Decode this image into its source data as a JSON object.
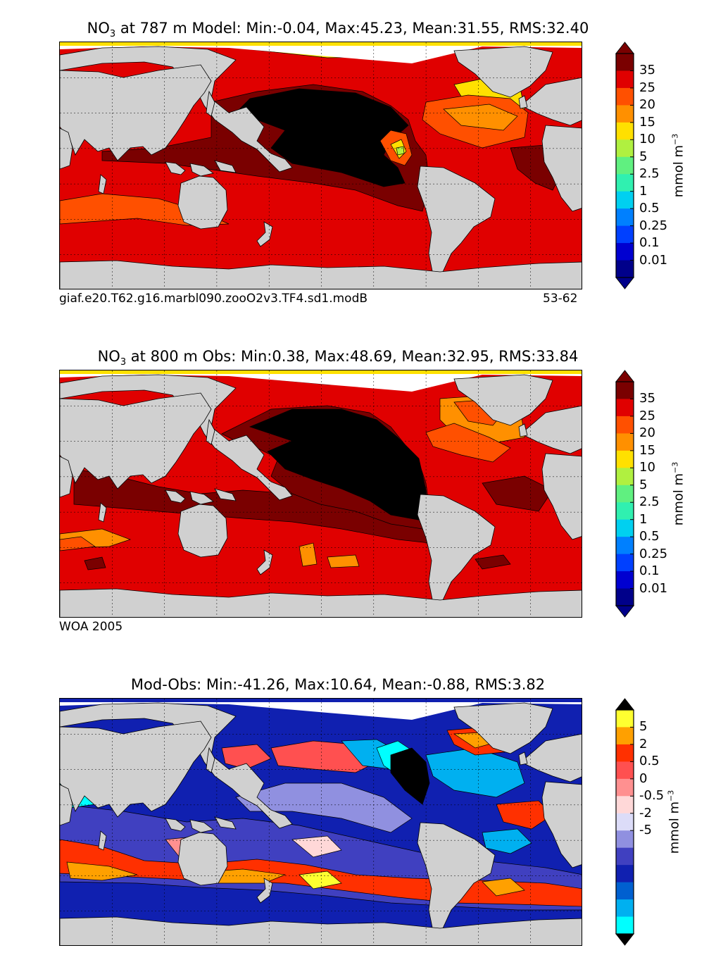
{
  "panels": [
    {
      "title_sym": "NO",
      "title_sub": "3",
      "title_rest": " at 787 m Model: Min:-0.04, Max:45.23, Mean:31.55, RMS:32.40",
      "caption_left": "giaf.e20.T62.g16.marbl090.zooO2v3.TF4.sd1.modB",
      "caption_right": "53-62",
      "colorbar": {
        "labels": [
          "35",
          "25",
          "20",
          "15",
          "10",
          "5",
          "2.5",
          "1",
          "0.5",
          "0.25",
          "0.1",
          "0.01"
        ],
        "colors": [
          "#7a0000",
          "#e00000",
          "#ff5000",
          "#ff9000",
          "#ffe000",
          "#b0f040",
          "#60f080",
          "#30f0b0",
          "#00d0f0",
          "#0080ff",
          "#0040ff",
          "#0000d0",
          "#00008a"
        ],
        "top_color": "#7a0000",
        "bottom_color": "#00008a"
      },
      "unit": "mmol m",
      "unit_sup": "−3"
    },
    {
      "title_sym": "NO",
      "title_sub": "3",
      "title_rest": " at 800 m Obs: Min:0.38, Max:48.69, Mean:32.95, RMS:33.84",
      "caption_left": "WOA 2005",
      "caption_right": "",
      "colorbar": {
        "labels": [
          "35",
          "25",
          "20",
          "15",
          "10",
          "5",
          "2.5",
          "1",
          "0.5",
          "0.25",
          "0.1",
          "0.01"
        ],
        "colors": [
          "#7a0000",
          "#e00000",
          "#ff5000",
          "#ff9000",
          "#ffe000",
          "#b0f040",
          "#60f080",
          "#30f0b0",
          "#00d0f0",
          "#0080ff",
          "#0040ff",
          "#0000d0",
          "#00008a"
        ],
        "top_color": "#7a0000",
        "bottom_color": "#00008a"
      },
      "unit": "mmol m",
      "unit_sup": "−3"
    },
    {
      "title_sym": "",
      "title_sub": "",
      "title_rest": "Mod-Obs: Min:-41.26, Max:10.64, Mean:-0.88, RMS:3.82",
      "caption_left": "",
      "caption_right": "",
      "colorbar": {
        "labels": [
          "5",
          "2",
          "0.5",
          "0",
          "-0.5",
          "-2",
          "-5"
        ],
        "colors": [
          "#ffff30",
          "#ffa000",
          "#ff3000",
          "#ff5050",
          "#ff9090",
          "#ffd8d8",
          "#dcdcf8",
          "#9090e0",
          "#4040c0",
          "#1020b0",
          "#0060d0",
          "#00b0f0",
          "#00ffff"
        ],
        "top_color": "#000000",
        "bottom_color": "#000000"
      },
      "unit": "mmol m",
      "unit_sup": "−3"
    }
  ],
  "colors": {
    "land": "#d0d0d0",
    "ice": "#ffffff",
    "grid": "#000000"
  }
}
